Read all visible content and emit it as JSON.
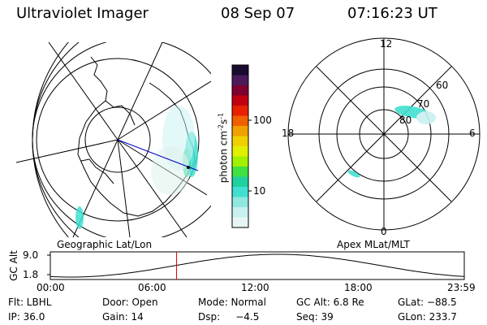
{
  "header": {
    "instrument": "Ultraviolet Imager",
    "date": "08 Sep 07",
    "time": "07:16:23 UT"
  },
  "left_panel": {
    "caption": "Geographic Lat/Lon"
  },
  "right_panel": {
    "caption": "Apex MLat/MLT",
    "mlt_labels": [
      "12",
      "18",
      "6",
      "0"
    ],
    "mlat_labels": [
      "60",
      "70",
      "80"
    ]
  },
  "colorbar": {
    "unit_label": "photon cm",
    "unit_sup1": "-2",
    "unit_mid": "s",
    "unit_sup2": "-1",
    "ticks": [
      "100",
      "10"
    ],
    "colors": [
      "#1a0a30",
      "#4a1a5a",
      "#800030",
      "#c00010",
      "#e82000",
      "#f06000",
      "#f0a000",
      "#f0d000",
      "#e0f000",
      "#a0f000",
      "#40e040",
      "#20d0a0",
      "#40e0d0",
      "#90e8e0",
      "#c8f0f0",
      "#e6f6f6"
    ]
  },
  "altitude_strip": {
    "axis_label": "GC Alt",
    "y_ticks": [
      "9.0",
      "1.8"
    ],
    "x_ticks": [
      "00:00",
      "06:00",
      "12:00",
      "18:00",
      "23:59"
    ],
    "marker_fraction": 0.305,
    "marker_color": "#e00000"
  },
  "footer": {
    "filter": "Flt: LBHL",
    "door": "Door: Open",
    "mode": "Mode: Normal",
    "gc_alt": "GC Alt: 6.8 Re",
    "glat": "GLat: −88.5",
    "ip": "IP: 36.0",
    "gain": "Gain: 14",
    "dsp": "Dsp:     −4.5",
    "seq": "Seq: 39",
    "glon": "GLon: 233.7"
  }
}
